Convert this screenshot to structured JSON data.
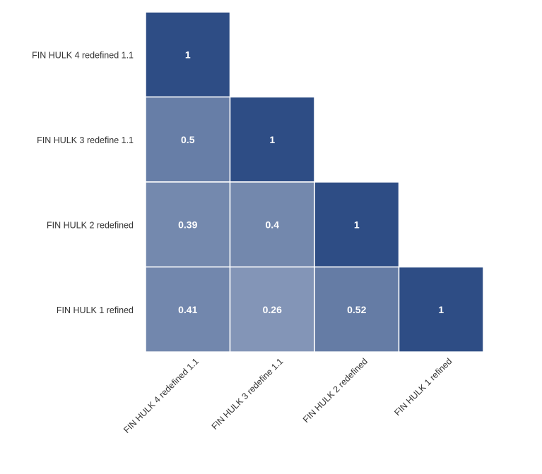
{
  "chart_data": {
    "type": "heatmap",
    "title": "",
    "variables": [
      "FIN HULK 4 redefined 1.1",
      "FIN HULK 3 redefine 1.1",
      "FIN HULK 2 redefined",
      "FIN HULK 1 refined"
    ],
    "matrix": [
      [
        1,
        null,
        null,
        null
      ],
      [
        0.5,
        1,
        null,
        null
      ],
      [
        0.39,
        0.4,
        1,
        null
      ],
      [
        0.41,
        0.26,
        0.52,
        1
      ]
    ],
    "triangle": "lower",
    "colors": {
      "high": "#2e4d85",
      "low": "#ffffff",
      "cell_text": "#ffffff",
      "cell_border": "#ffffff",
      "label_text": "#333333"
    },
    "legend": "none"
  }
}
